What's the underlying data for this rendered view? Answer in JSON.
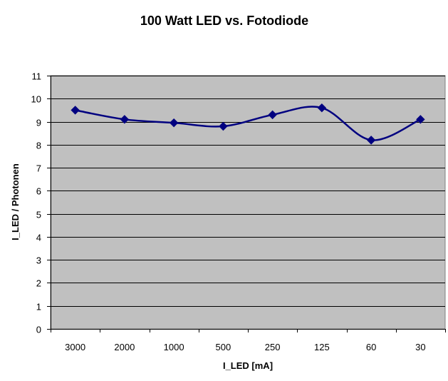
{
  "chart_data": {
    "type": "line",
    "title": "100 Watt LED vs. Fotodiode",
    "xlabel": "I_LED [mA]",
    "ylabel": "I_LED / Photonen",
    "categories": [
      "3000",
      "2000",
      "1000",
      "500",
      "250",
      "125",
      "60",
      "30"
    ],
    "series": [
      {
        "values": [
          9.5,
          9.1,
          8.95,
          8.8,
          9.3,
          9.6,
          8.2,
          9.1
        ]
      }
    ],
    "ylim": [
      0,
      11
    ],
    "yticks": [
      0,
      1,
      2,
      3,
      4,
      5,
      6,
      7,
      8,
      9,
      10,
      11
    ],
    "grid": true,
    "smooth": true,
    "marker": "diamond",
    "legend": "none",
    "colors": {
      "plot_background": "#c0c0c0",
      "line": "#000080",
      "grid": "#000000"
    }
  }
}
